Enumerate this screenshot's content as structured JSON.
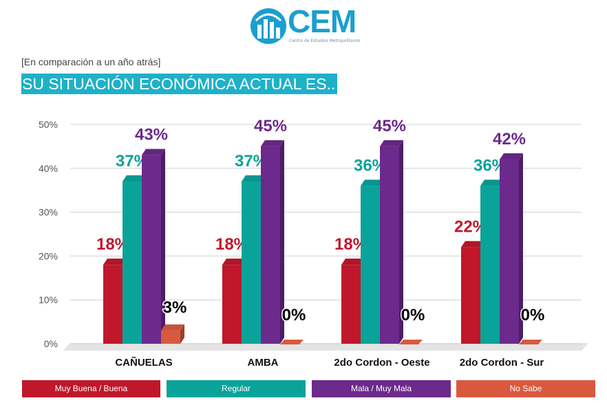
{
  "logo": {
    "text": "CEM",
    "subtitle": "Centro de Estudios Metropolitanos"
  },
  "header": {
    "subtitle": "[En comparación a un año atrás]",
    "title": "SU SITUACIÓN ECONÓMICA ACTUAL ES.."
  },
  "colors": {
    "title_bar": "#1eb1c7",
    "logo": "#1a9fd0",
    "series": [
      "#c0172b",
      "#0aa39a",
      "#6c2a8c",
      "#d9593e"
    ]
  },
  "chart_data": {
    "type": "bar",
    "categories": [
      "CAÑUELAS",
      "AMBA",
      "2do Cordon - Oeste",
      "2do Cordon - Sur"
    ],
    "series": [
      {
        "name": "Muy Buena / Buena",
        "values": [
          18,
          18,
          18,
          22
        ],
        "labels": [
          "18%",
          "18%",
          "18%",
          "22%"
        ]
      },
      {
        "name": "Regular",
        "values": [
          37,
          37,
          36,
          36
        ],
        "labels": [
          "37%",
          "37%",
          "36%",
          "36%"
        ]
      },
      {
        "name": "Mala / Muy Mala",
        "values": [
          43,
          45,
          45,
          42
        ],
        "labels": [
          "43%",
          "45%",
          "45%",
          "42%"
        ]
      },
      {
        "name": "No Sabe",
        "values": [
          3,
          0,
          0,
          0
        ],
        "labels": [
          "3%",
          "0%",
          "0%",
          "0%"
        ]
      }
    ],
    "yticks": [
      "0%",
      "10%",
      "20%",
      "30%",
      "40%",
      "50%"
    ],
    "ylim": [
      0,
      50
    ],
    "grid": true,
    "legend_position": "bottom"
  }
}
